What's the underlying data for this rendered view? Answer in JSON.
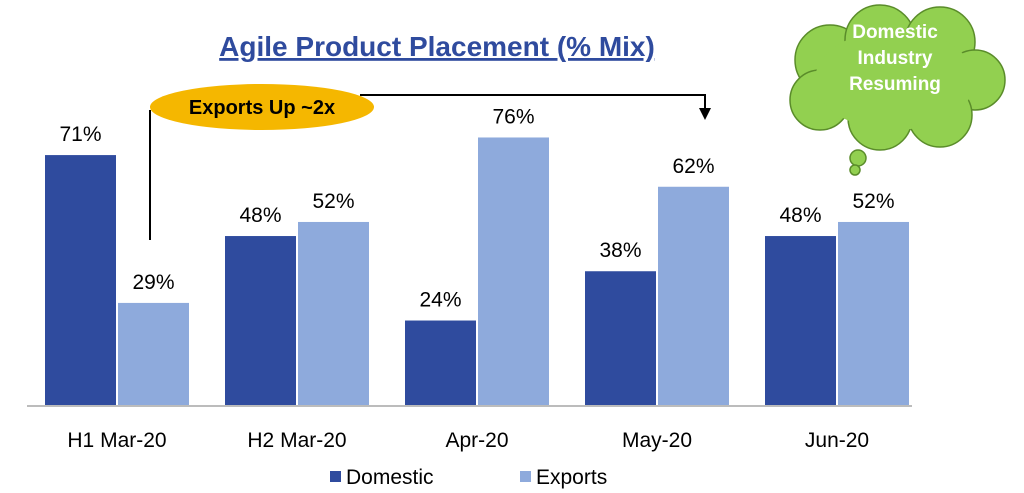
{
  "chart_data": {
    "type": "bar",
    "title": "Agile Product Placement (% Mix)",
    "categories": [
      "H1 Mar-20",
      "H2 Mar-20",
      "Apr-20",
      "May-20",
      "Jun-20"
    ],
    "series": [
      {
        "name": "Domestic",
        "color": "#2f4b9e",
        "values": [
          71,
          48,
          24,
          38,
          48
        ],
        "value_labels": [
          "71%",
          "48%",
          "24%",
          "38%",
          "48%"
        ]
      },
      {
        "name": "Exports",
        "color": "#8eaadc",
        "values": [
          29,
          52,
          76,
          62,
          52
        ],
        "value_labels": [
          "29%",
          "52%",
          "76%",
          "62%",
          "52%"
        ]
      }
    ],
    "annotations": [
      "Exports Up ~2x",
      "Domestic Industry Resuming"
    ],
    "legend": "bottom"
  }
}
